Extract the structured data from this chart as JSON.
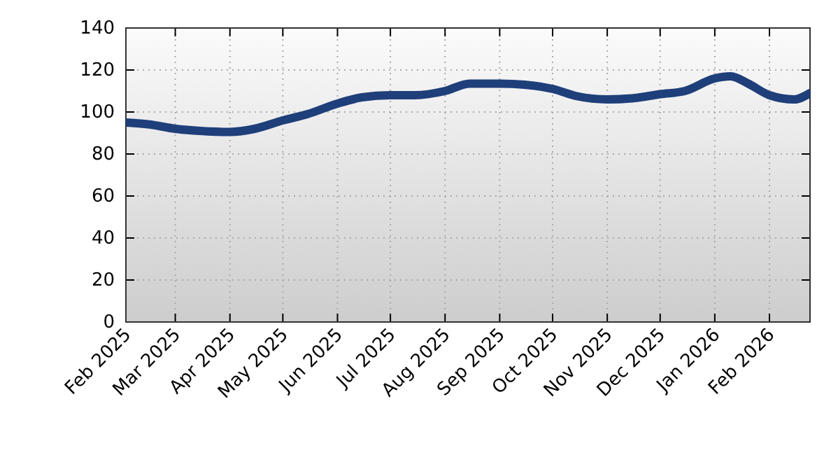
{
  "chart_data": {
    "type": "line",
    "x": [
      "2025-02-01",
      "2025-02-15",
      "2025-03-01",
      "2025-03-15",
      "2025-04-01",
      "2025-04-15",
      "2025-05-01",
      "2025-05-15",
      "2025-06-01",
      "2025-06-15",
      "2025-07-01",
      "2025-07-15",
      "2025-08-01",
      "2025-08-15",
      "2025-09-01",
      "2025-09-15",
      "2025-10-01",
      "2025-10-15",
      "2025-11-01",
      "2025-11-15",
      "2025-12-01",
      "2025-12-15",
      "2026-01-01",
      "2026-01-10",
      "2026-01-20",
      "2026-02-01",
      "2026-02-15",
      "2026-02-24"
    ],
    "series": [
      {
        "color": "#1f3f7a",
        "values": [
          95,
          94,
          92,
          91,
          90.5,
          92,
          96,
          99,
          104,
          107,
          108,
          108,
          110,
          113.5,
          113.5,
          113,
          111,
          107.5,
          106,
          106.5,
          108.5,
          110,
          116,
          117,
          113.5,
          108,
          106,
          109
        ]
      }
    ],
    "xlim": [
      "2025-02-01",
      "2026-02-24"
    ],
    "xticks": [
      {
        "value": "2025-02-01",
        "label": "Feb 2025"
      },
      {
        "value": "2025-03-01",
        "label": "Mar 2025"
      },
      {
        "value": "2025-04-01",
        "label": "Apr 2025"
      },
      {
        "value": "2025-05-01",
        "label": "May 2025"
      },
      {
        "value": "2025-06-01",
        "label": "Jun 2025"
      },
      {
        "value": "2025-07-01",
        "label": "Jul 2025"
      },
      {
        "value": "2025-08-01",
        "label": "Aug 2025"
      },
      {
        "value": "2025-09-01",
        "label": "Sep 2025"
      },
      {
        "value": "2025-10-01",
        "label": "Oct 2025"
      },
      {
        "value": "2025-11-01",
        "label": "Nov 2025"
      },
      {
        "value": "2025-12-01",
        "label": "Dec 2025"
      },
      {
        "value": "2026-01-01",
        "label": "Jan 2026"
      },
      {
        "value": "2026-02-01",
        "label": "Feb 2026"
      }
    ],
    "ylim": [
      0,
      140
    ],
    "yticks": [
      0,
      20,
      40,
      60,
      80,
      100,
      120,
      140
    ],
    "grid": true,
    "line_style": "solid",
    "marker": "none"
  }
}
